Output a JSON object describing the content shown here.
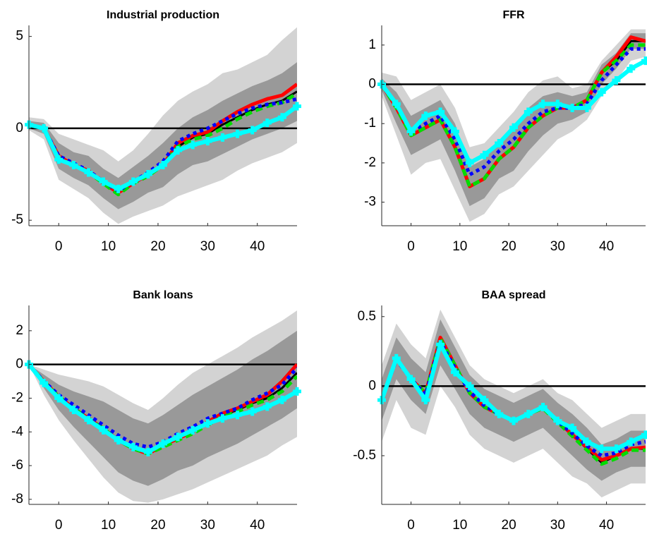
{
  "chart_data": [
    {
      "type": "line",
      "title": "Industrial production",
      "x": [
        -6,
        -3,
        0,
        3,
        6,
        9,
        12,
        15,
        18,
        21,
        24,
        27,
        30,
        33,
        36,
        39,
        42,
        45,
        48
      ],
      "xlim": [
        -6,
        48
      ],
      "xticks": [
        0,
        10,
        20,
        30,
        40
      ],
      "ylim": [
        -5.3,
        5.6
      ],
      "yticks": [
        -5,
        0,
        5
      ],
      "reference_line": {
        "value": 0,
        "color": "#000000"
      },
      "bands": [
        {
          "color": "#d3d3d3",
          "lower": [
            -0.1,
            -0.6,
            -2.8,
            -3.3,
            -3.8,
            -4.6,
            -5.2,
            -4.8,
            -4.5,
            -4.2,
            -3.7,
            -3.4,
            -3.1,
            -2.8,
            -2.3,
            -1.9,
            -1.6,
            -1.3,
            -0.8
          ],
          "upper": [
            0.6,
            0.5,
            -0.3,
            -0.6,
            -0.9,
            -1.2,
            -1.8,
            -1.2,
            -0.3,
            0.7,
            1.5,
            2,
            2.4,
            3,
            3.2,
            3.6,
            4,
            4.8,
            5.5
          ]
        },
        {
          "color": "#999999",
          "lower": [
            0,
            -0.3,
            -2.2,
            -2.7,
            -3.1,
            -3.8,
            -4.4,
            -4,
            -3.5,
            -3.2,
            -2.5,
            -2,
            -1.8,
            -1.4,
            -1,
            -0.6,
            -0.3,
            0,
            0.4
          ],
          "upper": [
            0.4,
            0.3,
            -0.8,
            -1.3,
            -1.5,
            -2.2,
            -2.7,
            -2.1,
            -1.5,
            -0.8,
            0,
            0.6,
            1,
            1.5,
            1.9,
            2.3,
            2.6,
            3,
            3.6
          ]
        }
      ],
      "series": [
        {
          "color": "#000000",
          "values": [
            0.2,
            0,
            -1.5,
            -2,
            -2.3,
            -3,
            -3.5,
            -3,
            -2.5,
            -2,
            -1,
            -0.5,
            -0.3,
            0.2,
            0.6,
            1,
            1.3,
            1.5,
            2
          ]
        },
        {
          "color": "#ff0000",
          "values": [
            0.2,
            0,
            -1.5,
            -2,
            -2.3,
            -3,
            -3.5,
            -3,
            -2.5,
            -2,
            -0.8,
            -0.4,
            -0.2,
            0.4,
            0.9,
            1.3,
            1.6,
            1.8,
            2.4
          ]
        },
        {
          "color": "#00dd00",
          "values": [
            0.2,
            0,
            -1.6,
            -2,
            -2.4,
            -3,
            -3.6,
            -3,
            -2.6,
            -2,
            -1,
            -0.6,
            -0.4,
            0,
            0.5,
            0.9,
            1.2,
            1.4,
            1.9
          ]
        },
        {
          "color": "#0000ff",
          "values": [
            0.2,
            0,
            -1.5,
            -1.9,
            -2.3,
            -2.9,
            -3.4,
            -2.9,
            -2.4,
            -1.8,
            -0.7,
            -0.3,
            0,
            0.4,
            0.8,
            1.1,
            1.3,
            1.4,
            1.6
          ]
        },
        {
          "color": "#00ffff",
          "values": [
            0.2,
            0,
            -1.7,
            -2,
            -2.4,
            -2.9,
            -3.3,
            -2.9,
            -2.5,
            -2,
            -1.2,
            -0.9,
            -0.7,
            -0.5,
            -0.3,
            -0.1,
            0.3,
            0.6,
            1.2
          ]
        }
      ]
    },
    {
      "type": "line",
      "title": "FFR",
      "x": [
        -6,
        -3,
        0,
        3,
        6,
        9,
        12,
        15,
        18,
        21,
        24,
        27,
        30,
        33,
        36,
        39,
        42,
        45,
        48
      ],
      "xlim": [
        -6,
        48
      ],
      "xticks": [
        0,
        10,
        20,
        30,
        40
      ],
      "ylim": [
        -3.6,
        1.5
      ],
      "yticks": [
        -3,
        -2,
        -1,
        0,
        1
      ],
      "reference_line": {
        "value": 0,
        "color": "#000000"
      },
      "bands": [
        {
          "color": "#d3d3d3",
          "lower": [
            -0.3,
            -1.3,
            -2.3,
            -2,
            -1.9,
            -2.7,
            -3.5,
            -3.3,
            -2.8,
            -2.6,
            -2.2,
            -1.8,
            -1.4,
            -1.2,
            -0.9,
            -0.3,
            0.1,
            0.6,
            0.7
          ],
          "upper": [
            0.3,
            0.2,
            -0.4,
            -0.2,
            0,
            -0.6,
            -1.6,
            -1.5,
            -1.1,
            -0.7,
            -0.2,
            0.1,
            0.2,
            -0.1,
            0,
            0.6,
            1,
            1.4,
            1.4
          ]
        },
        {
          "color": "#999999",
          "lower": [
            -0.15,
            -1,
            -1.8,
            -1.6,
            -1.4,
            -2.2,
            -3.1,
            -2.9,
            -2.4,
            -2.2,
            -1.7,
            -1.3,
            -1,
            -0.9,
            -0.7,
            0,
            0.4,
            0.9,
            0.9
          ],
          "upper": [
            0.15,
            -0.2,
            -0.8,
            -0.6,
            -0.4,
            -1,
            -2.1,
            -1.9,
            -1.5,
            -1.1,
            -0.6,
            -0.3,
            -0.2,
            -0.3,
            -0.2,
            0.5,
            0.8,
            1.3,
            1.3
          ]
        }
      ],
      "series": [
        {
          "color": "#000000",
          "values": [
            0,
            -0.6,
            -1.3,
            -1.1,
            -0.9,
            -1.6,
            -2.6,
            -2.4,
            -1.9,
            -1.6,
            -1.1,
            -0.8,
            -0.6,
            -0.6,
            -0.4,
            0.3,
            0.6,
            1.1,
            1.1
          ]
        },
        {
          "color": "#ff0000",
          "values": [
            0,
            -0.6,
            -1.3,
            -1.1,
            -0.9,
            -1.6,
            -2.6,
            -2.4,
            -1.9,
            -1.6,
            -1.1,
            -0.8,
            -0.6,
            -0.6,
            -0.4,
            0.3,
            0.7,
            1.2,
            1.1
          ]
        },
        {
          "color": "#00dd00",
          "values": [
            0,
            -0.6,
            -1.3,
            -1.1,
            -0.9,
            -1.6,
            -2.6,
            -2.4,
            -1.9,
            -1.6,
            -1.1,
            -0.8,
            -0.6,
            -0.6,
            -0.4,
            0.3,
            0.6,
            1,
            1
          ]
        },
        {
          "color": "#0000ff",
          "values": [
            0,
            -0.5,
            -1.2,
            -1,
            -0.8,
            -1.4,
            -2.3,
            -2.1,
            -1.7,
            -1.4,
            -1,
            -0.7,
            -0.6,
            -0.6,
            -0.5,
            0.1,
            0.5,
            0.9,
            0.9
          ]
        },
        {
          "color": "#00ffff",
          "values": [
            0,
            -0.5,
            -1.2,
            -0.8,
            -0.7,
            -1.2,
            -2,
            -1.8,
            -1.5,
            -1.1,
            -0.7,
            -0.5,
            -0.5,
            -0.6,
            -0.6,
            -0.2,
            0.1,
            0.4,
            0.6
          ]
        }
      ]
    },
    {
      "type": "line",
      "title": "Bank loans",
      "x": [
        -6,
        -3,
        0,
        3,
        6,
        9,
        12,
        15,
        18,
        21,
        24,
        27,
        30,
        33,
        36,
        39,
        42,
        45,
        48
      ],
      "xlim": [
        -6,
        48
      ],
      "xticks": [
        0,
        10,
        20,
        30,
        40
      ],
      "ylim": [
        -8.3,
        3.5
      ],
      "yticks": [
        -8,
        -6,
        -4,
        -2,
        0,
        2
      ],
      "reference_line": {
        "value": 0,
        "color": "#000000"
      },
      "bands": [
        {
          "color": "#d3d3d3",
          "lower": [
            0,
            -1.8,
            -3.3,
            -4.5,
            -5.6,
            -6.7,
            -7.6,
            -8.1,
            -8.2,
            -8,
            -7.7,
            -7.4,
            -7,
            -6.6,
            -6.2,
            -5.8,
            -5.4,
            -4.8,
            -4.3
          ],
          "upper": [
            0,
            -0.3,
            -0.6,
            -0.8,
            -1,
            -1.3,
            -1.8,
            -2.3,
            -2.7,
            -2,
            -1.2,
            -0.5,
            0,
            0.5,
            1,
            1.6,
            2.1,
            2.6,
            3.2
          ]
        },
        {
          "color": "#999999",
          "lower": [
            0,
            -1.4,
            -2.7,
            -3.7,
            -4.6,
            -5.5,
            -6.4,
            -6.9,
            -7.2,
            -6.8,
            -6.3,
            -6,
            -5.5,
            -5.1,
            -4.7,
            -4.2,
            -3.7,
            -3.2,
            -2.6
          ],
          "upper": [
            0,
            -0.6,
            -1.2,
            -1.6,
            -1.9,
            -2.2,
            -2.7,
            -3.2,
            -3.5,
            -3,
            -2.4,
            -1.8,
            -1.3,
            -0.8,
            -0.3,
            0.3,
            0.8,
            1.4,
            2
          ]
        }
      ],
      "series": [
        {
          "color": "#000000",
          "values": [
            0,
            -1,
            -1.9,
            -2.6,
            -3.2,
            -3.8,
            -4.5,
            -5,
            -5.3,
            -4.8,
            -4.4,
            -4,
            -3.5,
            -3,
            -2.7,
            -2.3,
            -2,
            -1.4,
            -0.5
          ]
        },
        {
          "color": "#ff0000",
          "values": [
            0,
            -1,
            -1.9,
            -2.6,
            -3.2,
            -3.8,
            -4.5,
            -5,
            -5.3,
            -4.8,
            -4.4,
            -4,
            -3.4,
            -2.9,
            -2.6,
            -2.2,
            -1.8,
            -1,
            0
          ]
        },
        {
          "color": "#00dd00",
          "values": [
            0,
            -1,
            -1.9,
            -2.6,
            -3.2,
            -3.8,
            -4.5,
            -5,
            -5.3,
            -4.9,
            -4.5,
            -4.1,
            -3.6,
            -3.1,
            -2.8,
            -2.4,
            -2.1,
            -1.6,
            -0.7
          ]
        },
        {
          "color": "#0000ff",
          "values": [
            0,
            -1,
            -1.8,
            -2.4,
            -3,
            -3.6,
            -4.2,
            -4.7,
            -4.9,
            -4.6,
            -4.1,
            -3.7,
            -3.2,
            -2.9,
            -2.6,
            -2.1,
            -1.7,
            -1.2,
            -0.2
          ]
        },
        {
          "color": "#00ffff",
          "values": [
            0,
            -1.1,
            -2,
            -2.7,
            -3.3,
            -3.9,
            -4.5,
            -4.9,
            -5.2,
            -4.7,
            -4.3,
            -3.9,
            -3.5,
            -3.2,
            -3,
            -2.8,
            -2.5,
            -2.1,
            -1.6
          ]
        }
      ]
    },
    {
      "type": "line",
      "title": "BAA spread",
      "x": [
        -6,
        -3,
        0,
        3,
        6,
        9,
        12,
        15,
        18,
        21,
        24,
        27,
        30,
        33,
        36,
        39,
        42,
        45,
        48
      ],
      "xlim": [
        -6,
        48
      ],
      "xticks": [
        0,
        10,
        20,
        30,
        40
      ],
      "ylim": [
        -0.85,
        0.58
      ],
      "yticks": [
        -0.5,
        0,
        0.5
      ],
      "reference_line": {
        "value": 0,
        "color": "#000000"
      },
      "bands": [
        {
          "color": "#d3d3d3",
          "lower": [
            -0.4,
            -0.1,
            -0.3,
            -0.35,
            0,
            -0.15,
            -0.35,
            -0.45,
            -0.5,
            -0.55,
            -0.5,
            -0.45,
            -0.55,
            -0.65,
            -0.7,
            -0.8,
            -0.75,
            -0.7,
            -0.7
          ],
          "upper": [
            0.15,
            0.45,
            0.3,
            0.2,
            0.55,
            0.35,
            0.15,
            0.05,
            0,
            -0.05,
            0,
            0.05,
            -0.05,
            -0.1,
            -0.2,
            -0.3,
            -0.25,
            -0.2,
            -0.2
          ]
        },
        {
          "color": "#999999",
          "lower": [
            -0.25,
            0.05,
            -0.1,
            -0.2,
            0.15,
            -0.02,
            -0.2,
            -0.3,
            -0.35,
            -0.4,
            -0.35,
            -0.3,
            -0.4,
            -0.5,
            -0.6,
            -0.68,
            -0.62,
            -0.58,
            -0.58
          ],
          "upper": [
            0.05,
            0.35,
            0.2,
            0.1,
            0.48,
            0.28,
            0.08,
            -0.02,
            -0.07,
            -0.12,
            -0.07,
            -0.02,
            -0.12,
            -0.2,
            -0.3,
            -0.42,
            -0.38,
            -0.32,
            -0.32
          ]
        }
      ],
      "series": [
        {
          "color": "#000000",
          "values": [
            -0.1,
            0.2,
            0.05,
            -0.05,
            0.35,
            0.15,
            -0.05,
            -0.15,
            -0.2,
            -0.25,
            -0.2,
            -0.15,
            -0.25,
            -0.35,
            -0.45,
            -0.55,
            -0.5,
            -0.45,
            -0.45
          ]
        },
        {
          "color": "#ff0000",
          "values": [
            -0.1,
            0.2,
            0.05,
            -0.05,
            0.35,
            0.15,
            -0.05,
            -0.15,
            -0.2,
            -0.25,
            -0.2,
            -0.15,
            -0.25,
            -0.35,
            -0.44,
            -0.53,
            -0.5,
            -0.45,
            -0.44
          ]
        },
        {
          "color": "#00dd00",
          "values": [
            -0.1,
            0.2,
            0.05,
            -0.05,
            0.34,
            0.15,
            -0.05,
            -0.15,
            -0.2,
            -0.25,
            -0.2,
            -0.16,
            -0.26,
            -0.36,
            -0.46,
            -0.56,
            -0.52,
            -0.46,
            -0.46
          ]
        },
        {
          "color": "#0000ff",
          "values": [
            -0.1,
            0.19,
            0.05,
            -0.06,
            0.32,
            0.13,
            -0.04,
            -0.14,
            -0.2,
            -0.25,
            -0.2,
            -0.15,
            -0.25,
            -0.34,
            -0.43,
            -0.5,
            -0.48,
            -0.42,
            -0.4
          ]
        },
        {
          "color": "#00ffff",
          "values": [
            -0.1,
            0.2,
            0.05,
            -0.1,
            0.3,
            0.1,
            0,
            -0.1,
            -0.2,
            -0.25,
            -0.2,
            -0.15,
            -0.25,
            -0.3,
            -0.4,
            -0.45,
            -0.45,
            -0.4,
            -0.35
          ]
        }
      ]
    }
  ]
}
